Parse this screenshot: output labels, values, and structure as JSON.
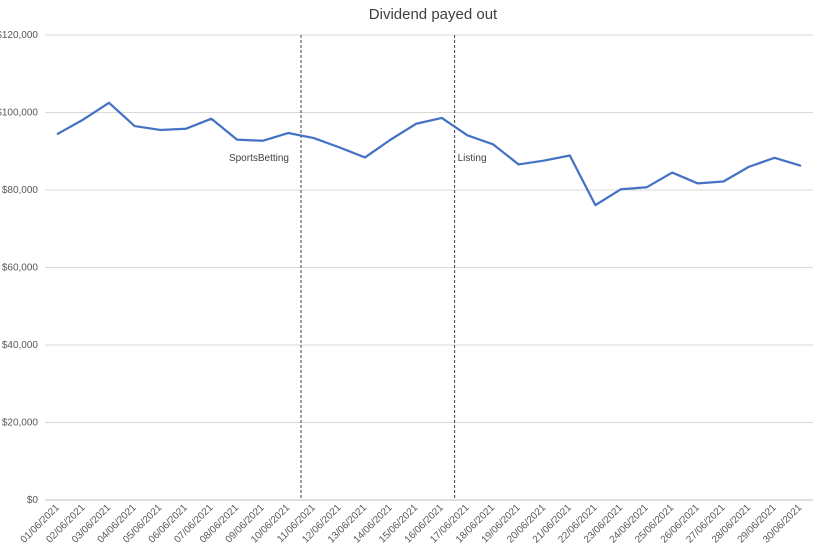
{
  "chart_data": {
    "type": "line",
    "title": "Dividend payed out",
    "xlabel": "",
    "ylabel": "",
    "ylim": [
      0,
      120000
    ],
    "y_ticks": [
      0,
      20000,
      40000,
      60000,
      80000,
      100000,
      120000
    ],
    "y_tick_labels": [
      "$0",
      "$20,000",
      "$40,000",
      "$60,000",
      "$80,000",
      "$100,000",
      "$120,000"
    ],
    "grid": "horizontal",
    "legend": "none",
    "color": "#4472c4",
    "categories": [
      "01/06/2021",
      "02/06/2021",
      "03/06/2021",
      "04/06/2021",
      "05/06/2021",
      "06/06/2021",
      "07/06/2021",
      "08/06/2021",
      "09/06/2021",
      "10/06/2021",
      "11/06/2021",
      "12/06/2021",
      "13/06/2021",
      "14/06/2021",
      "15/06/2021",
      "16/06/2021",
      "17/06/2021",
      "18/06/2021",
      "19/06/2021",
      "20/06/2021",
      "21/06/2021",
      "22/06/2021",
      "23/06/2021",
      "24/06/2021",
      "25/06/2021",
      "26/06/2021",
      "27/06/2021",
      "28/06/2021",
      "29/06/2021",
      "30/06/2021"
    ],
    "series": [
      {
        "values": [
          94500,
          98200,
          102500,
          96500,
          95500,
          95800,
          98400,
          93000,
          92700,
          94700,
          93400,
          91000,
          88400,
          93000,
          97100,
          98600,
          94100,
          91800,
          86600,
          87600,
          88900,
          76100,
          80200,
          80700,
          84500,
          81700,
          82200,
          86000,
          88300,
          86300
        ]
      }
    ],
    "annotations": [
      {
        "label": "SportsBetting",
        "at_category": "11/06/2021"
      },
      {
        "label": "Listing",
        "at_category": "17/06/2021"
      }
    ]
  }
}
